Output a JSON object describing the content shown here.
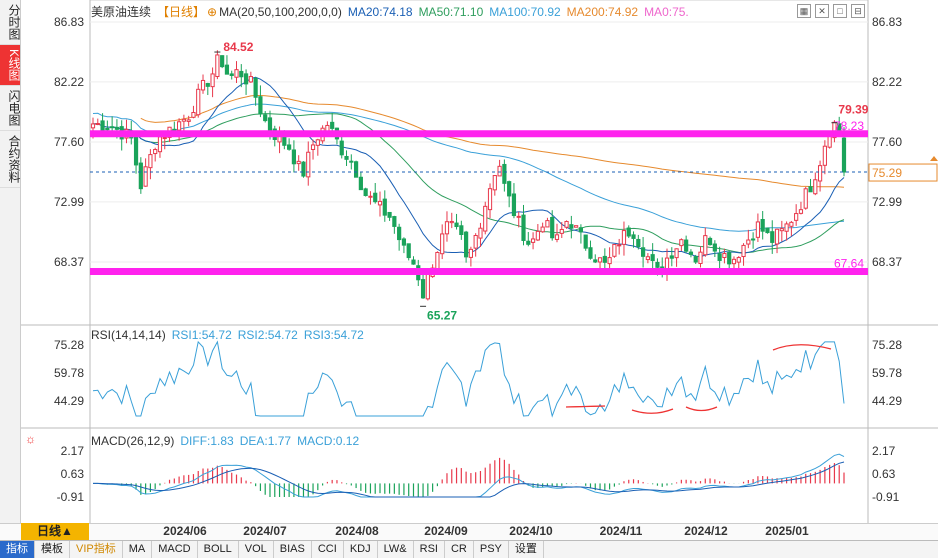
{
  "sidebar": {
    "tabs": [
      {
        "label": "分时图",
        "active": false
      },
      {
        "label": "K线图",
        "active": true
      },
      {
        "label": "闪电图",
        "active": false
      },
      {
        "label": "合约资料",
        "active": false
      }
    ]
  },
  "main_header": {
    "name": "美原油连续",
    "period": "【日线】",
    "ma_params": "MA(20,50,100,200,0,0)",
    "ma20": "MA20:74.18",
    "ma50": "MA50:71.10",
    "ma100": "MA100:70.92",
    "ma200": "MA200:74.92",
    "ma0": "MA0:75."
  },
  "price_axis": {
    "ticks": [
      "86.83",
      "82.22",
      "77.60",
      "72.99",
      "68.37"
    ],
    "current": "75.29"
  },
  "annotations": {
    "high_label": "84.52",
    "low_label": "65.27",
    "recent_high": "79.39",
    "upper_line": "78.23",
    "lower_line": "67.64"
  },
  "rsi_header": {
    "params": "RSI(14,14,14)",
    "rsi1": "RSI1:54.72",
    "rsi2": "RSI2:54.72",
    "rsi3": "RSI3:54.72"
  },
  "rsi_axis": [
    "75.28",
    "59.78",
    "44.29"
  ],
  "macd_header": {
    "params": "MACD(26,12,9)",
    "diff": "DIFF:1.83",
    "dea": "DEA:1.77",
    "macd": "MACD:0.12"
  },
  "macd_axis": [
    "2.17",
    "0.63",
    "-0.91"
  ],
  "x_axis": [
    "2024/06",
    "2024/07",
    "2024/08",
    "2024/09",
    "2024/10",
    "2024/11",
    "2024/12",
    "2025/01"
  ],
  "period_button": "日线▲",
  "bottom_tabs": [
    {
      "label": "指标",
      "active": true,
      "vip": false
    },
    {
      "label": "模板",
      "active": false,
      "vip": false
    },
    {
      "label": "VIP指标",
      "active": false,
      "vip": true
    },
    {
      "label": "MA",
      "active": false,
      "vip": false
    },
    {
      "label": "MACD",
      "active": false,
      "vip": false
    },
    {
      "label": "BOLL",
      "active": false,
      "vip": false
    },
    {
      "label": "VOL",
      "active": false,
      "vip": false
    },
    {
      "label": "BIAS",
      "active": false,
      "vip": false
    },
    {
      "label": "CCI",
      "active": false,
      "vip": false
    },
    {
      "label": "KDJ",
      "active": false,
      "vip": false
    },
    {
      "label": "LW&",
      "active": false,
      "vip": false
    },
    {
      "label": "RSI",
      "active": false,
      "vip": false
    },
    {
      "label": "CR",
      "active": false,
      "vip": false
    },
    {
      "label": "PSY",
      "active": false,
      "vip": false
    },
    {
      "label": "设置",
      "active": false,
      "vip": false
    }
  ],
  "colors": {
    "up": "#e8384b",
    "down": "#1aa35a",
    "ma20": "#1a5fb4",
    "ma50": "#2f9e5e",
    "ma100": "#3aa0d8",
    "ma200": "#e68a2e",
    "magenta": "#ff22ee",
    "current_price": "#e68a2e"
  }
}
